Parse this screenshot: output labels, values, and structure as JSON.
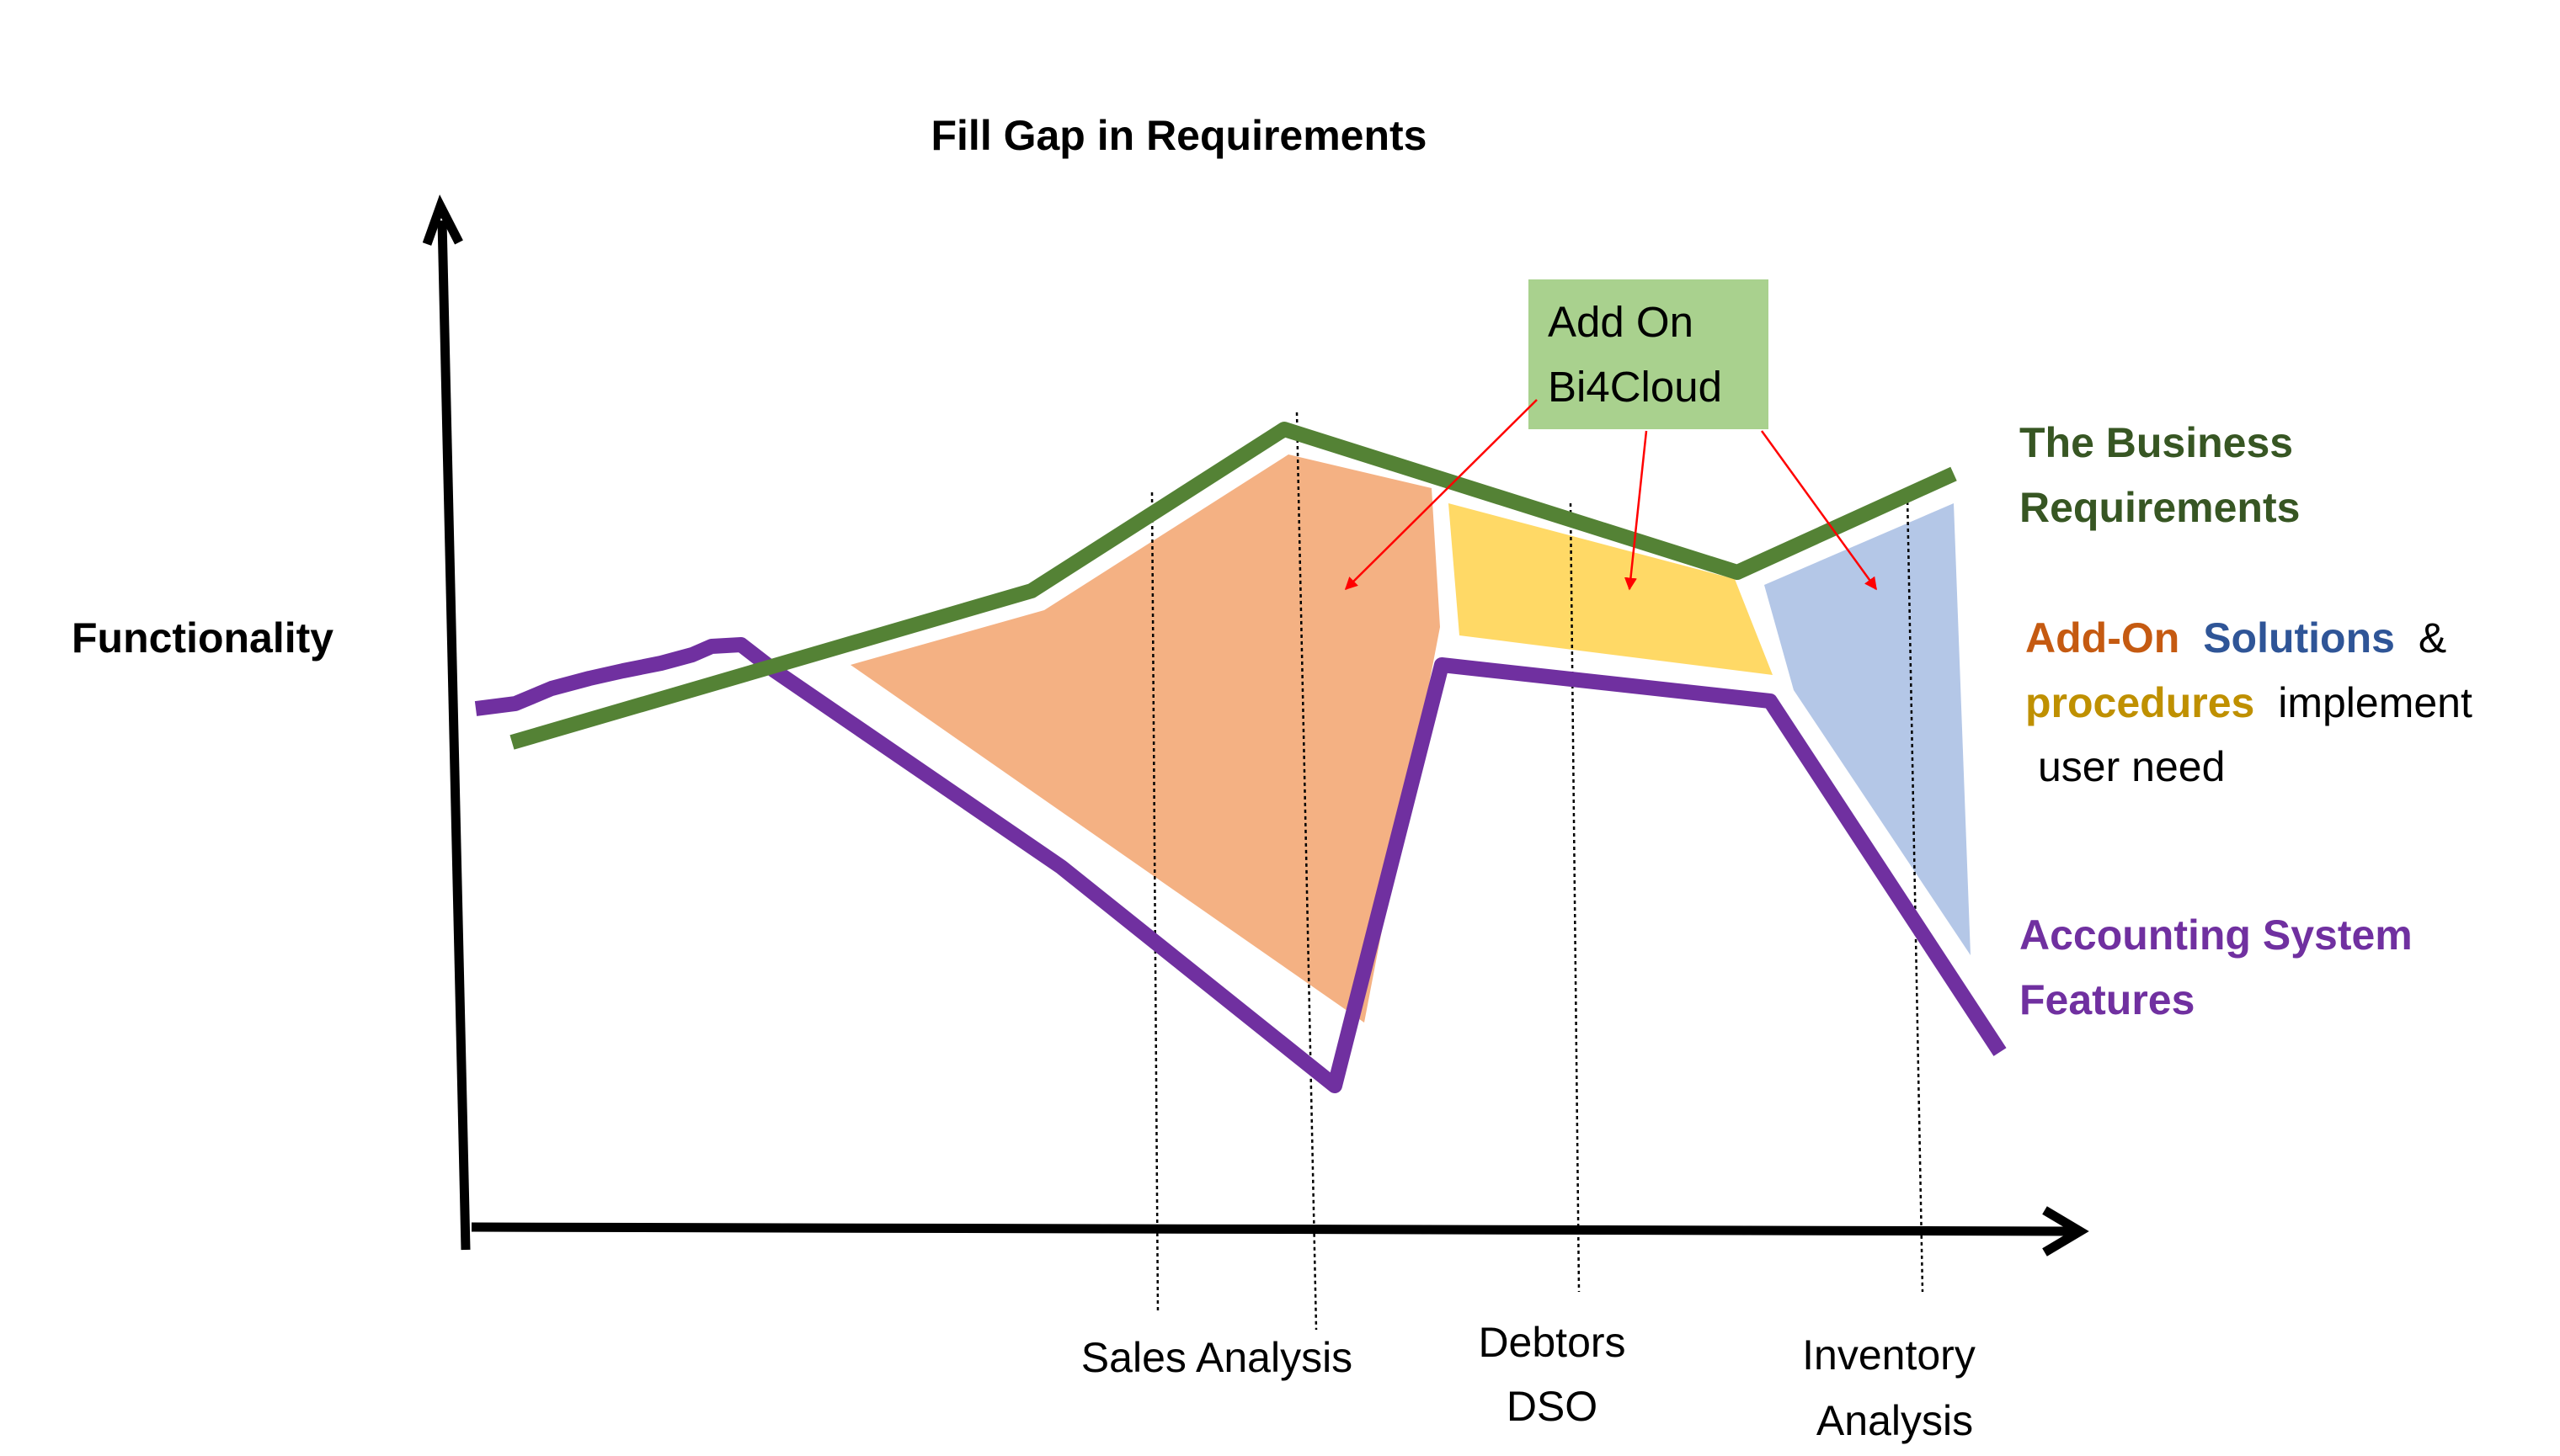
{
  "title": "Fill Gap in Requirements",
  "y_axis_label": "Functionality",
  "callout": {
    "line1": "Add On",
    "line2": "Bi4Cloud"
  },
  "legend": {
    "business_line1": "The Business",
    "business_line2": "Requirements",
    "addon_word": "Add-On",
    "solutions_word": "Solutions",
    "ampersand": "&",
    "procedures_word": "procedures",
    "implement_word": "implement",
    "user_need": "user need",
    "accounting_line1": "Accounting System",
    "accounting_line2": "Features"
  },
  "x_labels": {
    "sales": "Sales Analysis",
    "debtors_line1": "Debtors",
    "debtors_line2": "DSO",
    "inventory_line1": "Inventory",
    "inventory_line2": "Analysis"
  },
  "colors": {
    "business_green": "#548235",
    "business_text": "#375623",
    "accounting_purple": "#7030a0",
    "orange_fill": "#f4b183",
    "yellow_fill": "#ffd966",
    "blue_fill": "#b4c7e7",
    "callout_fill": "#a9d18e",
    "addon_text": "#c55a11",
    "solutions_text": "#2f5597",
    "procedures_text": "#bf9000",
    "arrow_red": "#ff0000",
    "axis": "#000000"
  }
}
